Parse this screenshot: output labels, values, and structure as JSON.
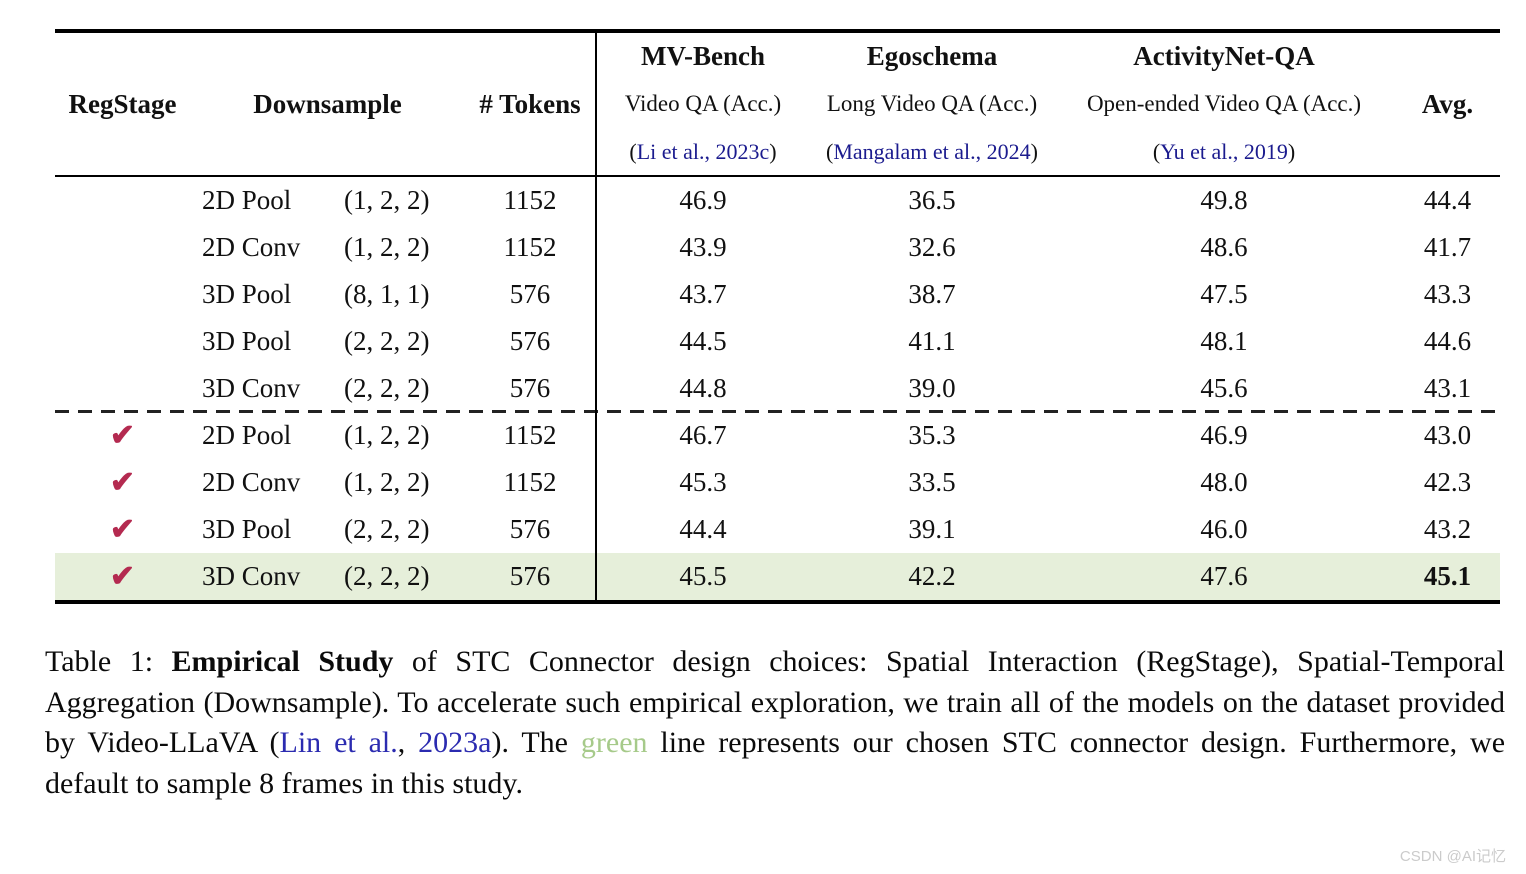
{
  "table": {
    "check_glyph": "✔",
    "check_color": "#b42a50",
    "highlight_color": "#e6efda",
    "cite_color": "#1b1b8e",
    "col_headers": {
      "reg_stage": "RegStage",
      "downsample": "Downsample",
      "tokens": "# Tokens",
      "avg": "Avg."
    },
    "benchmarks": [
      {
        "name": "MV-Bench",
        "subtitle": "Video QA (Acc.)",
        "cite_open": "(",
        "cite_text": "Li et al., 2023c",
        "cite_close": ")"
      },
      {
        "name": "Egoschema",
        "subtitle": "Long Video QA (Acc.)",
        "cite_open": "(",
        "cite_text": "Mangalam et al., 2024",
        "cite_close": ")"
      },
      {
        "name": "ActivityNet-QA",
        "subtitle": "Open-ended Video QA (Acc.)",
        "cite_open": "(",
        "cite_text": "Yu et al., 2019",
        "cite_close": ")"
      }
    ],
    "rows": [
      {
        "checked": false,
        "method": "2D Pool",
        "tuple": "(1, 2, 2)",
        "tokens": "1152",
        "mvbench": "46.9",
        "egoschema": "36.5",
        "activitynet": "49.8",
        "avg": "44.4",
        "highlight": false,
        "bold_avg": false,
        "dashed_top": false
      },
      {
        "checked": false,
        "method": "2D Conv",
        "tuple": "(1, 2, 2)",
        "tokens": "1152",
        "mvbench": "43.9",
        "egoschema": "32.6",
        "activitynet": "48.6",
        "avg": "41.7",
        "highlight": false,
        "bold_avg": false,
        "dashed_top": false
      },
      {
        "checked": false,
        "method": "3D Pool",
        "tuple": "(8, 1, 1)",
        "tokens": "576",
        "mvbench": "43.7",
        "egoschema": "38.7",
        "activitynet": "47.5",
        "avg": "43.3",
        "highlight": false,
        "bold_avg": false,
        "dashed_top": false
      },
      {
        "checked": false,
        "method": "3D Pool",
        "tuple": "(2, 2, 2)",
        "tokens": "576",
        "mvbench": "44.5",
        "egoschema": "41.1",
        "activitynet": "48.1",
        "avg": "44.6",
        "highlight": false,
        "bold_avg": false,
        "dashed_top": false
      },
      {
        "checked": false,
        "method": "3D Conv",
        "tuple": "(2, 2, 2)",
        "tokens": "576",
        "mvbench": "44.8",
        "egoschema": "39.0",
        "activitynet": "45.6",
        "avg": "43.1",
        "highlight": false,
        "bold_avg": false,
        "dashed_top": false
      },
      {
        "checked": true,
        "method": "2D Pool",
        "tuple": "(1, 2, 2)",
        "tokens": "1152",
        "mvbench": "46.7",
        "egoschema": "35.3",
        "activitynet": "46.9",
        "avg": "43.0",
        "highlight": false,
        "bold_avg": false,
        "dashed_top": true
      },
      {
        "checked": true,
        "method": "2D Conv",
        "tuple": "(1, 2, 2)",
        "tokens": "1152",
        "mvbench": "45.3",
        "egoschema": "33.5",
        "activitynet": "48.0",
        "avg": "42.3",
        "highlight": false,
        "bold_avg": false,
        "dashed_top": false
      },
      {
        "checked": true,
        "method": "3D Pool",
        "tuple": "(2, 2, 2)",
        "tokens": "576",
        "mvbench": "44.4",
        "egoschema": "39.1",
        "activitynet": "46.0",
        "avg": "43.2",
        "highlight": false,
        "bold_avg": false,
        "dashed_top": false
      },
      {
        "checked": true,
        "method": "3D Conv",
        "tuple": "(2, 2, 2)",
        "tokens": "576",
        "mvbench": "45.5",
        "egoschema": "42.2",
        "activitynet": "47.6",
        "avg": "45.1",
        "highlight": true,
        "bold_avg": true,
        "dashed_top": false
      }
    ]
  },
  "caption": {
    "segments": [
      {
        "text": "Table 1: ",
        "style": "normal"
      },
      {
        "text": "Empirical Study",
        "style": "bold"
      },
      {
        "text": " of STC Connector design choices: Spatial Interaction (RegStage), Spatial-Temporal Aggregation (Downsample).  To accelerate such empirical exploration, we train all of the models on the dataset provided by Video-LLaVA (",
        "style": "normal"
      },
      {
        "text": "Lin et al.",
        "style": "link"
      },
      {
        "text": ", ",
        "style": "normal"
      },
      {
        "text": "2023a",
        "style": "link"
      },
      {
        "text": ").  The ",
        "style": "normal"
      },
      {
        "text": "green",
        "style": "green"
      },
      {
        "text": " line represents our chosen STC connector design.  Furthermore, we default to sample 8 frames in this study.",
        "style": "normal"
      }
    ]
  },
  "watermark": "CSDN @AI记忆"
}
